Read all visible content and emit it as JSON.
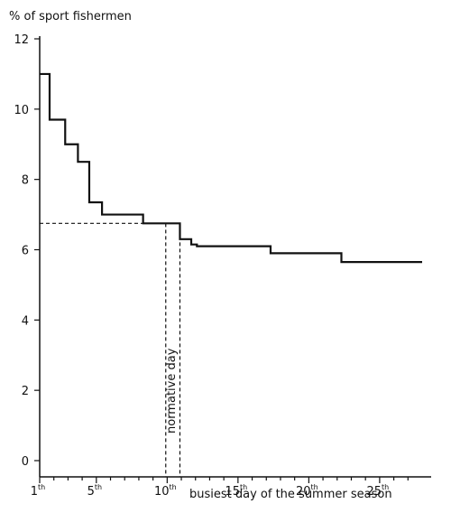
{
  "chart_data": {
    "type": "line",
    "subtype": "step",
    "ylabel": "% of sport fishermen",
    "xlabel": "busiest day of the summer season",
    "ylim": [
      0,
      12
    ],
    "xlim": [
      1,
      28
    ],
    "y_ticks": [
      {
        "value": 0,
        "label": "0"
      },
      {
        "value": 2,
        "label": "2"
      },
      {
        "value": 4,
        "label": "4"
      },
      {
        "value": 6,
        "label": "6"
      },
      {
        "value": 8,
        "label": "8"
      },
      {
        "value": 10,
        "label": "10"
      },
      {
        "value": 12,
        "label": "12"
      }
    ],
    "x_ticks": [
      {
        "value": 1,
        "label": "1",
        "sup": "th"
      },
      {
        "value": 5,
        "label": "5",
        "sup": "th"
      },
      {
        "value": 10,
        "label": "10",
        "sup": "th"
      },
      {
        "value": 15,
        "label": "15",
        "sup": "th"
      },
      {
        "value": 20,
        "label": "20",
        "sup": "th"
      },
      {
        "value": 25,
        "label": "25",
        "sup": "th"
      }
    ],
    "x_minor_ticks": [
      2,
      3,
      4,
      6,
      7,
      8,
      9,
      11,
      12,
      13,
      14,
      16,
      17,
      18,
      19,
      21,
      22,
      23,
      24,
      26,
      27
    ],
    "series": [
      {
        "steps": [
          {
            "x0": 1.0,
            "x1": 1.7,
            "y": 11.0
          },
          {
            "x0": 1.7,
            "x1": 2.8,
            "y": 9.7
          },
          {
            "x0": 2.8,
            "x1": 3.7,
            "y": 9.0
          },
          {
            "x0": 3.7,
            "x1": 4.5,
            "y": 8.5
          },
          {
            "x0": 4.5,
            "x1": 5.4,
            "y": 7.35
          },
          {
            "x0": 5.4,
            "x1": 8.3,
            "y": 7.0
          },
          {
            "x0": 8.3,
            "x1": 10.9,
            "y": 6.75
          },
          {
            "x0": 10.9,
            "x1": 11.7,
            "y": 6.3
          },
          {
            "x0": 11.7,
            "x1": 12.1,
            "y": 6.15
          },
          {
            "x0": 12.1,
            "x1": 17.3,
            "y": 6.1
          },
          {
            "x0": 17.3,
            "x1": 22.3,
            "y": 5.9
          },
          {
            "x0": 22.3,
            "x1": 28.0,
            "y": 5.65
          }
        ]
      }
    ],
    "annotations": {
      "normative_day_label": "normative day",
      "normative_value": 6.75,
      "normative_x_left": 9.9,
      "normative_x_right": 10.9
    },
    "grid": false
  }
}
